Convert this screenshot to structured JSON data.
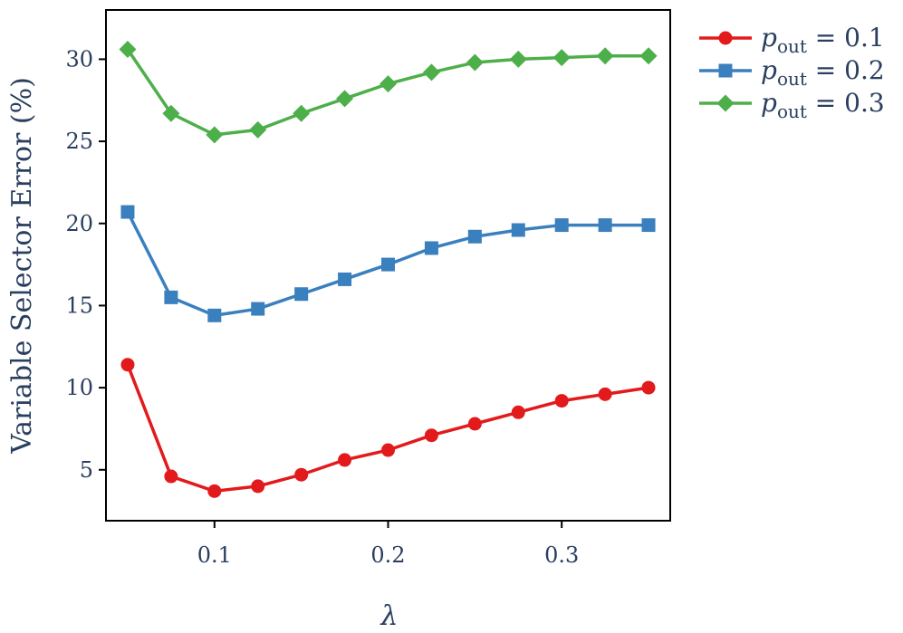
{
  "chart_data": {
    "type": "line",
    "xlabel": "λ",
    "ylabel": "Variable Selector Error (%)",
    "xlim": [
      0.0375,
      0.3625
    ],
    "ylim": [
      1.9,
      33.0
    ],
    "x_ticks": [
      0.1,
      0.2,
      0.3
    ],
    "x_tick_labels": [
      "0.1",
      "0.2",
      "0.3"
    ],
    "y_ticks": [
      5,
      10,
      15,
      20,
      25,
      30
    ],
    "y_tick_labels": [
      "5",
      "10",
      "15",
      "20",
      "25",
      "30"
    ],
    "grid": false,
    "legend_position": "outside-right-top",
    "x": [
      0.05,
      0.075,
      0.1,
      0.125,
      0.15,
      0.175,
      0.2,
      0.225,
      0.25,
      0.275,
      0.3,
      0.325,
      0.35
    ],
    "series": [
      {
        "name_main": "p",
        "name_sub": "out",
        "name_rest": " = 0.1",
        "color": "#e31a1c",
        "marker": "circle",
        "values": [
          11.4,
          4.6,
          3.7,
          4.0,
          4.7,
          5.6,
          6.2,
          7.1,
          7.8,
          8.5,
          9.2,
          9.6,
          10.0
        ]
      },
      {
        "name_main": "p",
        "name_sub": "out",
        "name_rest": " = 0.2",
        "color": "#3a7fbe",
        "marker": "square",
        "values": [
          20.7,
          15.5,
          14.4,
          14.8,
          15.7,
          16.6,
          17.5,
          18.5,
          19.2,
          19.6,
          19.9,
          19.9,
          19.9
        ]
      },
      {
        "name_main": "p",
        "name_sub": "out",
        "name_rest": " = 0.3",
        "color": "#4daf4a",
        "marker": "diamond",
        "values": [
          30.6,
          26.7,
          25.4,
          25.7,
          26.7,
          27.6,
          28.5,
          29.2,
          29.8,
          30.0,
          30.1,
          30.2,
          30.2
        ]
      }
    ]
  }
}
